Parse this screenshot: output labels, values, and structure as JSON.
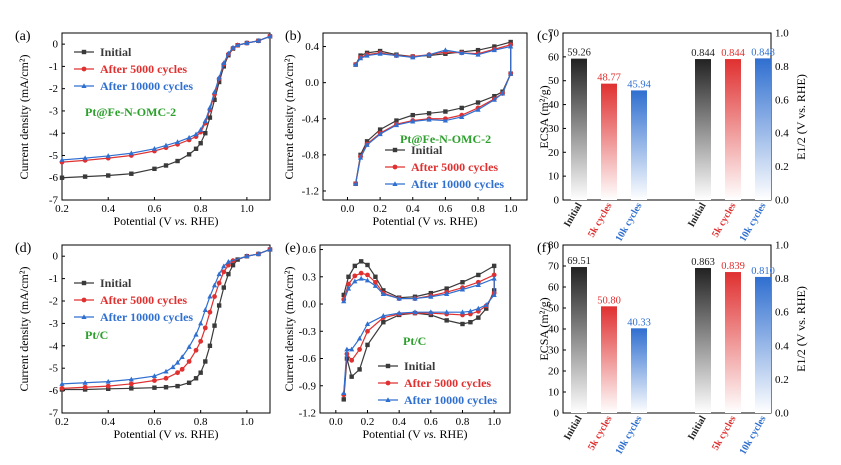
{
  "chart_data": [
    {
      "id": "a",
      "type": "line",
      "panel_label": "(a)",
      "xlabel_pre": "Potential (V ",
      "xlabel_it": "vs.",
      "xlabel_post": " RHE)",
      "ylabel": "Current density (mA/cm²)",
      "xlim": [
        0.2,
        1.1
      ],
      "ylim": [
        -7,
        0.5
      ],
      "xticks": [
        "0.2",
        "0.4",
        "0.6",
        "0.8",
        "1.0"
      ],
      "xtick_values": [
        0.2,
        0.4,
        0.6,
        0.8,
        1.0
      ],
      "yticks": [
        "-7",
        "-6",
        "-5",
        "-4",
        "-3",
        "-2",
        "-1",
        "0"
      ],
      "ytick_values": [
        -7,
        -6,
        -5,
        -4,
        -3,
        -2,
        -1,
        0
      ],
      "annotation": "Pt@Fe-N-OMC-2",
      "annotation_color": "#2ca02c",
      "legend_pos": "top-left",
      "series": [
        {
          "name": "Initial",
          "color": "#3a3a3a",
          "marker": "square",
          "x": [
            0.2,
            0.3,
            0.4,
            0.5,
            0.6,
            0.65,
            0.7,
            0.75,
            0.78,
            0.8,
            0.82,
            0.84,
            0.86,
            0.88,
            0.9,
            0.92,
            0.94,
            0.96,
            1.0,
            1.05,
            1.1
          ],
          "y": [
            -6.0,
            -5.95,
            -5.9,
            -5.82,
            -5.6,
            -5.45,
            -5.25,
            -4.95,
            -4.7,
            -4.45,
            -4.0,
            -3.3,
            -2.5,
            -1.7,
            -1.0,
            -0.5,
            -0.2,
            -0.05,
            0.05,
            0.15,
            0.35
          ]
        },
        {
          "name": "After 5000 cycles",
          "color": "#e03030",
          "marker": "circle",
          "x": [
            0.2,
            0.3,
            0.4,
            0.5,
            0.6,
            0.65,
            0.7,
            0.75,
            0.78,
            0.8,
            0.82,
            0.84,
            0.86,
            0.88,
            0.9,
            0.92,
            0.94,
            0.96,
            1.0,
            1.05,
            1.1
          ],
          "y": [
            -5.3,
            -5.22,
            -5.12,
            -5.0,
            -4.8,
            -4.65,
            -4.5,
            -4.3,
            -4.15,
            -3.95,
            -3.55,
            -2.95,
            -2.25,
            -1.55,
            -0.9,
            -0.45,
            -0.18,
            -0.05,
            0.05,
            0.15,
            0.35
          ]
        },
        {
          "name": "After 10000 cycles",
          "color": "#2f6fd0",
          "marker": "triangle",
          "x": [
            0.2,
            0.3,
            0.4,
            0.5,
            0.6,
            0.65,
            0.7,
            0.75,
            0.78,
            0.8,
            0.82,
            0.84,
            0.86,
            0.88,
            0.9,
            0.92,
            0.94,
            0.96,
            1.0,
            1.05,
            1.1
          ],
          "y": [
            -5.2,
            -5.12,
            -5.02,
            -4.9,
            -4.7,
            -4.55,
            -4.4,
            -4.2,
            -4.05,
            -3.85,
            -3.45,
            -2.85,
            -2.15,
            -1.5,
            -0.85,
            -0.42,
            -0.16,
            -0.04,
            0.05,
            0.15,
            0.35
          ]
        }
      ]
    },
    {
      "id": "b",
      "type": "line",
      "panel_label": "(b)",
      "xlabel_pre": "Potential (V ",
      "xlabel_it": "vs.",
      "xlabel_post": " RHE)",
      "ylabel": "Current density (mA/cm²)",
      "xlim": [
        -0.15,
        1.1
      ],
      "ylim": [
        -1.3,
        0.55
      ],
      "xticks": [
        "0.0",
        "0.2",
        "0.4",
        "0.6",
        "0.8",
        "1.0"
      ],
      "xtick_values": [
        0,
        0.2,
        0.4,
        0.6,
        0.8,
        1.0
      ],
      "yticks": [
        "-1.2",
        "-0.8",
        "-0.4",
        "0.0",
        "0.4"
      ],
      "ytick_values": [
        -1.2,
        -0.8,
        -0.4,
        0,
        0.4
      ],
      "annotation": "Pt@Fe-N-OMC-2",
      "annotation_color": "#2ca02c",
      "legend_pos": "bottom-right",
      "series": [
        {
          "name": "Initial",
          "color": "#3a3a3a",
          "marker": "square",
          "x": [
            0.05,
            0.08,
            0.12,
            0.2,
            0.3,
            0.4,
            0.5,
            0.6,
            0.7,
            0.8,
            0.9,
            1.0,
            1.0,
            0.95,
            0.9,
            0.8,
            0.7,
            0.6,
            0.5,
            0.4,
            0.3,
            0.2,
            0.12,
            0.08,
            0.05
          ],
          "y": [
            0.2,
            0.3,
            0.33,
            0.35,
            0.31,
            0.29,
            0.3,
            0.32,
            0.34,
            0.36,
            0.4,
            0.45,
            0.1,
            -0.1,
            -0.15,
            -0.22,
            -0.28,
            -0.32,
            -0.34,
            -0.36,
            -0.42,
            -0.52,
            -0.65,
            -0.8,
            -1.12
          ]
        },
        {
          "name": "After 5000 cycles",
          "color": "#e03030",
          "marker": "circle",
          "x": [
            0.05,
            0.08,
            0.12,
            0.2,
            0.3,
            0.4,
            0.5,
            0.6,
            0.7,
            0.8,
            0.9,
            1.0,
            1.0,
            0.95,
            0.9,
            0.8,
            0.7,
            0.6,
            0.5,
            0.4,
            0.3,
            0.2,
            0.12,
            0.08,
            0.05
          ],
          "y": [
            0.2,
            0.28,
            0.31,
            0.33,
            0.3,
            0.29,
            0.31,
            0.34,
            0.33,
            0.32,
            0.37,
            0.42,
            0.1,
            -0.12,
            -0.18,
            -0.28,
            -0.36,
            -0.4,
            -0.4,
            -0.42,
            -0.46,
            -0.56,
            -0.68,
            -0.82,
            -1.12
          ]
        },
        {
          "name": "After 10000 cycles",
          "color": "#2f6fd0",
          "marker": "triangle",
          "x": [
            0.05,
            0.08,
            0.12,
            0.2,
            0.3,
            0.4,
            0.5,
            0.6,
            0.7,
            0.8,
            0.9,
            1.0,
            1.0,
            0.95,
            0.9,
            0.8,
            0.7,
            0.6,
            0.5,
            0.4,
            0.3,
            0.2,
            0.12,
            0.08,
            0.05
          ],
          "y": [
            0.2,
            0.27,
            0.3,
            0.32,
            0.3,
            0.28,
            0.31,
            0.36,
            0.33,
            0.31,
            0.36,
            0.4,
            0.1,
            -0.12,
            -0.19,
            -0.3,
            -0.38,
            -0.42,
            -0.41,
            -0.43,
            -0.47,
            -0.57,
            -0.69,
            -0.83,
            -1.12
          ]
        }
      ]
    },
    {
      "id": "c",
      "type": "bar",
      "panel_label": "(c)",
      "ylabel_left": "ECSA (m²/g)",
      "ylabel_right": "E1/2 (V vs. RHE)",
      "ylim_left": [
        0,
        70
      ],
      "ylim_right": [
        0,
        1.0
      ],
      "yticks_left": [
        "0",
        "10",
        "20",
        "30",
        "40",
        "50",
        "60",
        "70"
      ],
      "ytick_values_left": [
        0,
        10,
        20,
        30,
        40,
        50,
        60,
        70
      ],
      "yticks_right": [
        "0.0",
        "0.2",
        "0.4",
        "0.6",
        "0.8",
        "1.0"
      ],
      "ytick_values_right": [
        0,
        0.2,
        0.4,
        0.6,
        0.8,
        1.0
      ],
      "categories": [
        "Initial",
        "5k cycles",
        "10k cycles",
        "Initial",
        "5k cycles",
        "10k cycles"
      ],
      "category_colors": [
        "#222222",
        "#e03030",
        "#2f6fd0",
        "#222222",
        "#e03030",
        "#2f6fd0"
      ],
      "ecsa": {
        "values": [
          59.26,
          48.77,
          45.94
        ],
        "labels": [
          "59.26",
          "48.77",
          "45.94"
        ]
      },
      "e_half": {
        "values": [
          0.844,
          0.844,
          0.848
        ],
        "labels": [
          "0.844",
          "0.844",
          "0.848"
        ]
      }
    },
    {
      "id": "d",
      "type": "line",
      "panel_label": "(d)",
      "xlabel_pre": "Potential (V ",
      "xlabel_it": "vs.",
      "xlabel_post": " RHE)",
      "ylabel": "Current density (mA/cm²)",
      "xlim": [
        0.2,
        1.1
      ],
      "ylim": [
        -7,
        0.5
      ],
      "xticks": [
        "0.2",
        "0.4",
        "0.6",
        "0.8",
        "1.0"
      ],
      "xtick_values": [
        0.2,
        0.4,
        0.6,
        0.8,
        1.0
      ],
      "yticks": [
        "-7",
        "-6",
        "-5",
        "-4",
        "-3",
        "-2",
        "-1",
        "0"
      ],
      "ytick_values": [
        -7,
        -6,
        -5,
        -4,
        -3,
        -2,
        -1,
        0
      ],
      "annotation": "Pt/C",
      "annotation_color": "#2ca02c",
      "legend_pos": "top-right",
      "series": [
        {
          "name": "Initial",
          "color": "#3a3a3a",
          "marker": "square",
          "x": [
            0.2,
            0.3,
            0.4,
            0.5,
            0.6,
            0.65,
            0.7,
            0.75,
            0.78,
            0.8,
            0.82,
            0.84,
            0.86,
            0.88,
            0.9,
            0.92,
            0.94,
            0.96,
            1.0,
            1.05,
            1.1
          ],
          "y": [
            -5.95,
            -5.95,
            -5.92,
            -5.9,
            -5.87,
            -5.85,
            -5.8,
            -5.65,
            -5.45,
            -5.2,
            -4.7,
            -4.0,
            -3.1,
            -2.2,
            -1.4,
            -0.8,
            -0.4,
            -0.15,
            0.0,
            0.1,
            0.3
          ]
        },
        {
          "name": "After 5000 cycles",
          "color": "#e03030",
          "marker": "circle",
          "x": [
            0.2,
            0.3,
            0.4,
            0.5,
            0.6,
            0.65,
            0.7,
            0.72,
            0.75,
            0.78,
            0.8,
            0.82,
            0.84,
            0.86,
            0.88,
            0.9,
            0.92,
            0.94,
            1.0,
            1.05,
            1.1
          ],
          "y": [
            -5.9,
            -5.85,
            -5.8,
            -5.7,
            -5.55,
            -5.45,
            -5.2,
            -5.05,
            -4.7,
            -4.2,
            -3.8,
            -3.2,
            -2.5,
            -1.8,
            -1.2,
            -0.7,
            -0.4,
            -0.2,
            0.0,
            0.1,
            0.3
          ]
        },
        {
          "name": "After 10000 cycles",
          "color": "#2f6fd0",
          "marker": "triangle",
          "x": [
            0.2,
            0.3,
            0.4,
            0.5,
            0.6,
            0.65,
            0.68,
            0.7,
            0.72,
            0.75,
            0.78,
            0.8,
            0.82,
            0.84,
            0.86,
            0.88,
            0.9,
            0.92,
            1.0,
            1.05,
            1.1
          ],
          "y": [
            -5.7,
            -5.65,
            -5.6,
            -5.5,
            -5.35,
            -5.15,
            -4.95,
            -4.75,
            -4.5,
            -4.05,
            -3.5,
            -3.0,
            -2.4,
            -1.8,
            -1.3,
            -0.8,
            -0.45,
            -0.25,
            0.0,
            0.1,
            0.3
          ]
        }
      ]
    },
    {
      "id": "e",
      "type": "line",
      "panel_label": "(e)",
      "xlabel_pre": "Potential (V ",
      "xlabel_it": "vs.",
      "xlabel_post": " RHE)",
      "ylabel": "Current density (mA/cm²)",
      "xlim": [
        -0.1,
        1.1
      ],
      "ylim": [
        -1.2,
        0.65
      ],
      "xticks": [
        "0.0",
        "0.2",
        "0.4",
        "0.6",
        "0.8",
        "1.0"
      ],
      "xtick_values": [
        0,
        0.2,
        0.4,
        0.6,
        0.8,
        1.0
      ],
      "yticks": [
        "-1.2",
        "-0.9",
        "-0.6",
        "-0.3",
        "0.0",
        "0.3",
        "0.6"
      ],
      "ytick_values": [
        -1.2,
        -0.9,
        -0.6,
        -0.3,
        0,
        0.3,
        0.6
      ],
      "annotation": "Pt/C",
      "annotation_color": "#2ca02c",
      "legend_pos": "bottom-right",
      "series": [
        {
          "name": "Initial",
          "color": "#3a3a3a",
          "marker": "square",
          "x": [
            0.05,
            0.08,
            0.12,
            0.16,
            0.2,
            0.25,
            0.3,
            0.4,
            0.5,
            0.6,
            0.7,
            0.8,
            0.9,
            1.0,
            1.0,
            0.95,
            0.9,
            0.85,
            0.8,
            0.7,
            0.6,
            0.5,
            0.4,
            0.3,
            0.2,
            0.15,
            0.1,
            0.07,
            0.05
          ],
          "y": [
            0.1,
            0.3,
            0.42,
            0.47,
            0.43,
            0.3,
            0.15,
            0.07,
            0.08,
            0.12,
            0.17,
            0.24,
            0.32,
            0.42,
            0.15,
            -0.05,
            -0.15,
            -0.2,
            -0.22,
            -0.18,
            -0.12,
            -0.1,
            -0.12,
            -0.2,
            -0.45,
            -0.72,
            -0.8,
            -0.6,
            -1.05
          ]
        },
        {
          "name": "After 5000 cycles",
          "color": "#e03030",
          "marker": "circle",
          "x": [
            0.05,
            0.08,
            0.12,
            0.16,
            0.2,
            0.25,
            0.3,
            0.4,
            0.5,
            0.6,
            0.7,
            0.8,
            0.9,
            1.0,
            1.0,
            0.95,
            0.9,
            0.85,
            0.8,
            0.7,
            0.6,
            0.5,
            0.4,
            0.3,
            0.2,
            0.15,
            0.1,
            0.07,
            0.05
          ],
          "y": [
            0.05,
            0.22,
            0.31,
            0.34,
            0.32,
            0.24,
            0.12,
            0.06,
            0.06,
            0.09,
            0.13,
            0.18,
            0.24,
            0.32,
            0.12,
            -0.02,
            -0.08,
            -0.11,
            -0.12,
            -0.11,
            -0.1,
            -0.1,
            -0.11,
            -0.15,
            -0.3,
            -0.5,
            -0.62,
            -0.55,
            -1.0
          ]
        },
        {
          "name": "After 10000 cycles",
          "color": "#2f6fd0",
          "marker": "triangle",
          "x": [
            0.05,
            0.08,
            0.12,
            0.16,
            0.2,
            0.25,
            0.3,
            0.4,
            0.5,
            0.6,
            0.7,
            0.8,
            0.9,
            1.0,
            1.0,
            0.95,
            0.9,
            0.85,
            0.8,
            0.7,
            0.6,
            0.5,
            0.4,
            0.3,
            0.2,
            0.15,
            0.1,
            0.07,
            0.05
          ],
          "y": [
            0.03,
            0.17,
            0.25,
            0.28,
            0.26,
            0.2,
            0.11,
            0.06,
            0.06,
            0.08,
            0.11,
            0.16,
            0.21,
            0.28,
            0.1,
            -0.01,
            -0.05,
            -0.08,
            -0.09,
            -0.09,
            -0.09,
            -0.09,
            -0.1,
            -0.13,
            -0.22,
            -0.38,
            -0.5,
            -0.5,
            -0.98
          ]
        }
      ]
    },
    {
      "id": "f",
      "type": "bar",
      "panel_label": "(f)",
      "ylabel_left": "ECSA (m²/g)",
      "ylabel_right": "E1/2 (V vs. RHE)",
      "ylim_left": [
        0,
        80
      ],
      "ylim_right": [
        0,
        1.0
      ],
      "yticks_left": [
        "0",
        "10",
        "20",
        "30",
        "40",
        "50",
        "60",
        "70",
        "80"
      ],
      "ytick_values_left": [
        0,
        10,
        20,
        30,
        40,
        50,
        60,
        70,
        80
      ],
      "yticks_right": [
        "0.0",
        "0.2",
        "0.4",
        "0.6",
        "0.8",
        "1.0"
      ],
      "ytick_values_right": [
        0,
        0.2,
        0.4,
        0.6,
        0.8,
        1.0
      ],
      "categories": [
        "Initial",
        "5k cycles",
        "10k cycles",
        "Initial",
        "5k cycles",
        "10k cycles"
      ],
      "category_colors": [
        "#222222",
        "#e03030",
        "#2f6fd0",
        "#222222",
        "#e03030",
        "#2f6fd0"
      ],
      "ecsa": {
        "values": [
          69.51,
          50.8,
          40.33
        ],
        "labels": [
          "69.51",
          "50.80",
          "40.33"
        ]
      },
      "e_half": {
        "values": [
          0.863,
          0.839,
          0.81
        ],
        "labels": [
          "0.863",
          "0.839",
          "0.810"
        ]
      }
    }
  ]
}
